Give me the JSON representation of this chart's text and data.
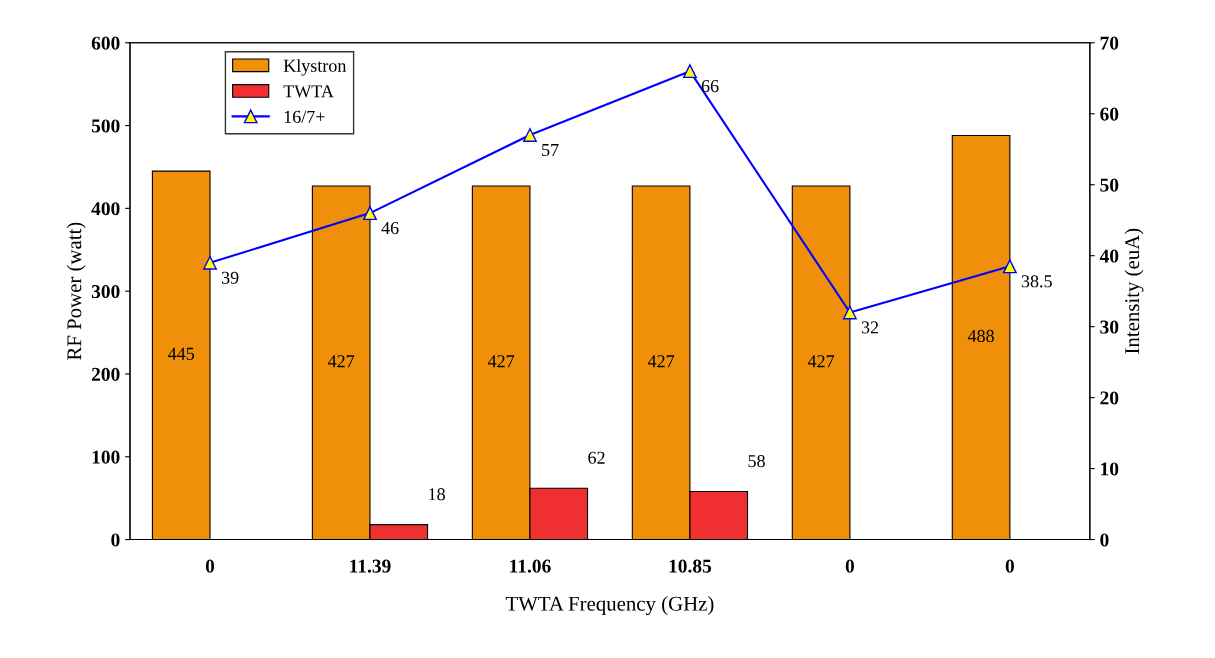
{
  "chart_data": {
    "type": "bar",
    "xlabel": "TWTA Frequency (GHz)",
    "ylabel": "RF Power (watt)",
    "y2label": "Intensity (euA)",
    "categories": [
      "0",
      "11.39",
      "11.06",
      "10.85",
      "0",
      "0"
    ],
    "series": [
      {
        "name": "Klystron",
        "color": "#f0900a",
        "values": [
          445,
          427,
          427,
          427,
          427,
          488
        ]
      },
      {
        "name": "TWTA",
        "color": "#f03030",
        "values": [
          null,
          18,
          62,
          58,
          null,
          null
        ]
      },
      {
        "name": "16/7+",
        "type": "line",
        "axis": "y2",
        "color": "#0000ff",
        "marker": "triangle",
        "values": [
          39,
          46,
          57,
          66,
          32,
          38.5
        ]
      }
    ],
    "ylim": [
      0,
      600
    ],
    "yticks": [
      0,
      100,
      200,
      300,
      400,
      500,
      600
    ],
    "y2lim": [
      0,
      70
    ],
    "y2ticks": [
      0,
      10,
      20,
      30,
      40,
      50,
      60,
      70
    ],
    "data_labels": true,
    "legend": "top left",
    "grid": false
  }
}
